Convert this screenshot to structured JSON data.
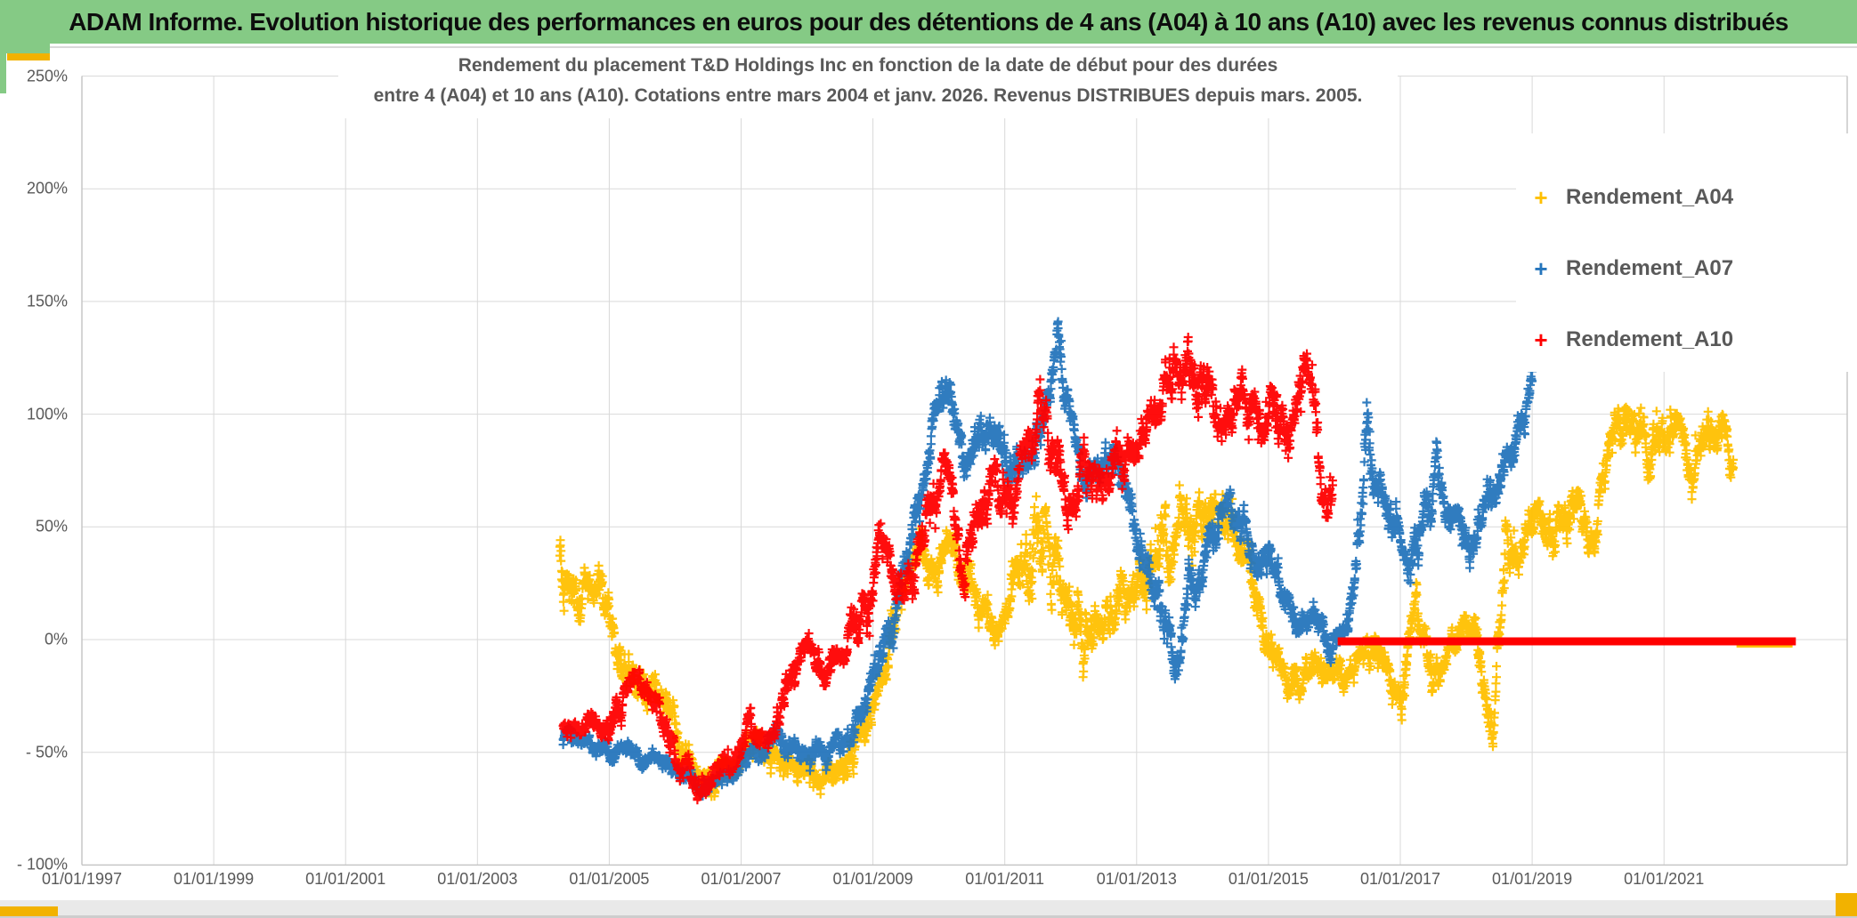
{
  "header": {
    "title": "ADAM Informe. Evolution historique des performances en euros pour des détentions de 4 ans (A04) à 10 ans (A10) avec les revenus connus distribués",
    "bg_color": "#85CA85"
  },
  "chart": {
    "title_line1": "Rendement du placement T&D Holdings Inc en fonction de la date de début pour des durées",
    "title_line2": "entre 4 (A04) et 10 ans (A10). Cotations entre mars 2004 et janv. 2026. Revenus DISTRIBUES depuis mars. 2005.",
    "text_color": "#595959",
    "grid_color": "#d9d9d9",
    "border_color": "#c3c3c3"
  },
  "legend": {
    "items": [
      {
        "label": "Rendement_A04",
        "color": "#FFC000"
      },
      {
        "label": "Rendement_A07",
        "color": "#2575BC"
      },
      {
        "label": "Rendement_A10",
        "color": "#FF0000"
      }
    ]
  },
  "accents": {
    "gold": "#F2B200"
  },
  "chart_data": {
    "type": "scatter",
    "marker": "plus",
    "title": "Rendement du placement T&D Holdings Inc en fonction de la date de début pour des durées entre 4 (A04) et 10 ans (A10). Cotations entre mars 2004 et janv. 2026. Revenus DISTRIBUES depuis mars. 2005.",
    "x_axis": {
      "tick_labels": [
        "01/01/1997",
        "01/01/1999",
        "01/01/2001",
        "01/01/2003",
        "01/01/2005",
        "01/01/2007",
        "01/01/2009",
        "01/01/2011",
        "01/01/2013",
        "01/01/2015",
        "01/01/2017",
        "01/01/2019",
        "01/01/2021"
      ],
      "tick_years": [
        1997,
        1999,
        2001,
        2003,
        2005,
        2007,
        2009,
        2011,
        2013,
        2015,
        2017,
        2019,
        2021
      ],
      "min_year": 1997,
      "max_year": 2023.8
    },
    "y_axis": {
      "tick_labels": [
        "250%",
        "200%",
        "150%",
        "100%",
        "50%",
        "0%",
        "- 50%",
        "- 100%"
      ],
      "tick_values": [
        250,
        200,
        150,
        100,
        50,
        0,
        -50,
        -100
      ],
      "unit": "%",
      "min": -100,
      "max": 250
    },
    "grid": true,
    "legend_position": "top-right",
    "series": [
      {
        "name": "Rendement_A04",
        "color": "#FFC000",
        "seed": 42,
        "clamp": [
          -77,
          122
        ],
        "zero_line": {
          "value": 0,
          "from_year": 2022.1,
          "to_year": 2022.95,
          "thickness": 8
        },
        "anchors_year_meanpct_spreadpct": [
          [
            2004.25,
            35,
            28
          ],
          [
            2004.4,
            15,
            14
          ],
          [
            2004.65,
            22,
            12
          ],
          [
            2004.9,
            12,
            12
          ],
          [
            2005.15,
            -8,
            12
          ],
          [
            2005.45,
            -22,
            10
          ],
          [
            2005.7,
            -17,
            10
          ],
          [
            2005.95,
            -35,
            10
          ],
          [
            2006.2,
            -55,
            10
          ],
          [
            2006.5,
            -66,
            7
          ],
          [
            2006.8,
            -58,
            8
          ],
          [
            2007.1,
            -48,
            8
          ],
          [
            2007.4,
            -52,
            8
          ],
          [
            2007.7,
            -57,
            8
          ],
          [
            2008.0,
            -60,
            9
          ],
          [
            2008.3,
            -65,
            8
          ],
          [
            2008.6,
            -52,
            10
          ],
          [
            2008.9,
            -42,
            10
          ],
          [
            2009.1,
            -20,
            12
          ],
          [
            2009.35,
            22,
            14
          ],
          [
            2009.6,
            38,
            10
          ],
          [
            2009.85,
            28,
            14
          ],
          [
            2010.1,
            40,
            13
          ],
          [
            2010.4,
            28,
            12
          ],
          [
            2010.7,
            14,
            12
          ],
          [
            2011.0,
            8,
            12
          ],
          [
            2011.3,
            38,
            22
          ],
          [
            2011.6,
            42,
            28
          ],
          [
            2011.9,
            35,
            25
          ],
          [
            2012.2,
            15,
            18
          ],
          [
            2012.5,
            8,
            14
          ],
          [
            2012.8,
            20,
            14
          ],
          [
            2013.1,
            28,
            16
          ],
          [
            2013.4,
            38,
            20
          ],
          [
            2013.75,
            55,
            18
          ],
          [
            2014.05,
            58,
            13
          ],
          [
            2014.4,
            50,
            13
          ],
          [
            2014.7,
            28,
            14
          ],
          [
            2014.95,
            2,
            14
          ],
          [
            2015.25,
            -15,
            10
          ],
          [
            2015.55,
            -20,
            10
          ],
          [
            2015.85,
            -14,
            10
          ],
          [
            2016.15,
            -17,
            10
          ],
          [
            2016.45,
            -8,
            10
          ],
          [
            2016.75,
            -14,
            11
          ],
          [
            2017.0,
            -26,
            11
          ],
          [
            2017.25,
            6,
            13
          ],
          [
            2017.5,
            -20,
            12
          ],
          [
            2017.75,
            2,
            11
          ],
          [
            2018.0,
            8,
            11
          ],
          [
            2018.25,
            -22,
            16
          ],
          [
            2018.4,
            -30,
            14
          ],
          [
            2018.6,
            38,
            16
          ],
          [
            2018.85,
            22,
            14
          ],
          [
            2019.1,
            58,
            14
          ],
          [
            2019.4,
            48,
            16
          ],
          [
            2019.65,
            68,
            16
          ],
          [
            2019.95,
            42,
            15
          ],
          [
            2020.25,
            98,
            14
          ],
          [
            2020.55,
            92,
            16
          ],
          [
            2020.85,
            82,
            18
          ],
          [
            2021.1,
            95,
            14
          ],
          [
            2021.4,
            78,
            14
          ],
          [
            2021.65,
            95,
            16
          ],
          [
            2021.9,
            88,
            14
          ],
          [
            2022.05,
            75,
            12
          ]
        ]
      },
      {
        "name": "Rendement_A07",
        "color": "#2575BC",
        "seed": 43,
        "clamp": [
          -70,
          148
        ],
        "zero_line": null,
        "anchors_year_meanpct_spreadpct": [
          [
            2004.3,
            -44,
            6
          ],
          [
            2004.6,
            -48,
            5
          ],
          [
            2004.9,
            -50,
            5
          ],
          [
            2005.2,
            -48,
            5
          ],
          [
            2005.5,
            -52,
            5
          ],
          [
            2005.8,
            -55,
            5
          ],
          [
            2006.1,
            -60,
            5
          ],
          [
            2006.4,
            -64,
            5
          ],
          [
            2006.7,
            -61,
            5
          ],
          [
            2007.0,
            -55,
            6
          ],
          [
            2007.3,
            -49,
            7
          ],
          [
            2007.6,
            -45,
            7
          ],
          [
            2007.9,
            -50,
            7
          ],
          [
            2008.2,
            -53,
            7
          ],
          [
            2008.5,
            -46,
            8
          ],
          [
            2008.8,
            -32,
            9
          ],
          [
            2009.0,
            -22,
            10
          ],
          [
            2009.2,
            2,
            12
          ],
          [
            2009.45,
            30,
            14
          ],
          [
            2009.7,
            62,
            14
          ],
          [
            2009.95,
            95,
            13
          ],
          [
            2010.15,
            105,
            11
          ],
          [
            2010.4,
            72,
            11
          ],
          [
            2010.6,
            85,
            11
          ],
          [
            2010.85,
            92,
            13
          ],
          [
            2011.1,
            66,
            13
          ],
          [
            2011.35,
            76,
            13
          ],
          [
            2011.6,
            92,
            13
          ],
          [
            2011.8,
            128,
            15
          ],
          [
            2012.0,
            96,
            13
          ],
          [
            2012.2,
            70,
            11
          ],
          [
            2012.45,
            84,
            11
          ],
          [
            2012.7,
            76,
            13
          ],
          [
            2012.95,
            58,
            13
          ],
          [
            2013.15,
            28,
            13
          ],
          [
            2013.4,
            8,
            13
          ],
          [
            2013.6,
            -10,
            13
          ],
          [
            2013.85,
            24,
            13
          ],
          [
            2014.1,
            44,
            11
          ],
          [
            2014.4,
            55,
            11
          ],
          [
            2014.65,
            48,
            11
          ],
          [
            2014.9,
            34,
            11
          ],
          [
            2015.15,
            24,
            9
          ],
          [
            2015.45,
            10,
            9
          ],
          [
            2015.7,
            4,
            9
          ],
          [
            2015.95,
            -6,
            8
          ],
          [
            2016.2,
            6,
            10
          ],
          [
            2016.4,
            45,
            18
          ],
          [
            2016.5,
            100,
            22
          ],
          [
            2016.62,
            72,
            16
          ],
          [
            2016.85,
            56,
            13
          ],
          [
            2017.05,
            30,
            12
          ],
          [
            2017.3,
            58,
            15
          ],
          [
            2017.55,
            74,
            13
          ],
          [
            2017.8,
            55,
            13
          ],
          [
            2018.05,
            46,
            13
          ],
          [
            2018.3,
            56,
            13
          ],
          [
            2018.55,
            66,
            13
          ],
          [
            2018.8,
            86,
            13
          ],
          [
            2019.0,
            105,
            11
          ]
        ]
      },
      {
        "name": "Rendement_A10",
        "color": "#FF0000",
        "seed": 44,
        "clamp": [
          -73,
          151
        ],
        "zero_line": {
          "value": 0,
          "from_year": 2016.05,
          "to_year": 2023.0,
          "thickness": 9
        },
        "anchors_year_meanpct_spreadpct": [
          [
            2004.3,
            -38,
            8
          ],
          [
            2004.6,
            -42,
            6
          ],
          [
            2004.9,
            -35,
            8
          ],
          [
            2005.15,
            -24,
            9
          ],
          [
            2005.4,
            -15,
            8
          ],
          [
            2005.65,
            -26,
            9
          ],
          [
            2005.9,
            -45,
            8
          ],
          [
            2006.15,
            -58,
            8
          ],
          [
            2006.45,
            -64,
            6
          ],
          [
            2006.7,
            -55,
            8
          ],
          [
            2006.95,
            -47,
            8
          ],
          [
            2007.2,
            -36,
            9
          ],
          [
            2007.45,
            -40,
            8
          ],
          [
            2007.7,
            -25,
            10
          ],
          [
            2008.0,
            -4,
            8
          ],
          [
            2008.25,
            -12,
            9
          ],
          [
            2008.5,
            -8,
            9
          ],
          [
            2008.8,
            18,
            16
          ],
          [
            2009.1,
            40,
            13
          ],
          [
            2009.35,
            22,
            13
          ],
          [
            2009.6,
            20,
            13
          ],
          [
            2009.85,
            58,
            16
          ],
          [
            2010.1,
            85,
            13
          ],
          [
            2010.35,
            32,
            13
          ],
          [
            2010.6,
            58,
            15
          ],
          [
            2010.85,
            74,
            15
          ],
          [
            2011.1,
            60,
            14
          ],
          [
            2011.3,
            80,
            14
          ],
          [
            2011.5,
            94,
            15
          ],
          [
            2011.7,
            88,
            16
          ],
          [
            2011.95,
            70,
            16
          ],
          [
            2012.2,
            84,
            16
          ],
          [
            2012.45,
            62,
            16
          ],
          [
            2012.7,
            76,
            16
          ],
          [
            2012.95,
            90,
            16
          ],
          [
            2013.2,
            100,
            16
          ],
          [
            2013.55,
            115,
            18
          ],
          [
            2013.8,
            126,
            16
          ],
          [
            2014.05,
            110,
            16
          ],
          [
            2014.3,
            96,
            16
          ],
          [
            2014.55,
            105,
            16
          ],
          [
            2014.8,
            92,
            16
          ],
          [
            2015.05,
            104,
            16
          ],
          [
            2015.3,
            85,
            18
          ],
          [
            2015.55,
            118,
            16
          ],
          [
            2015.8,
            76,
            16
          ],
          [
            2015.98,
            62,
            12
          ]
        ]
      }
    ]
  }
}
